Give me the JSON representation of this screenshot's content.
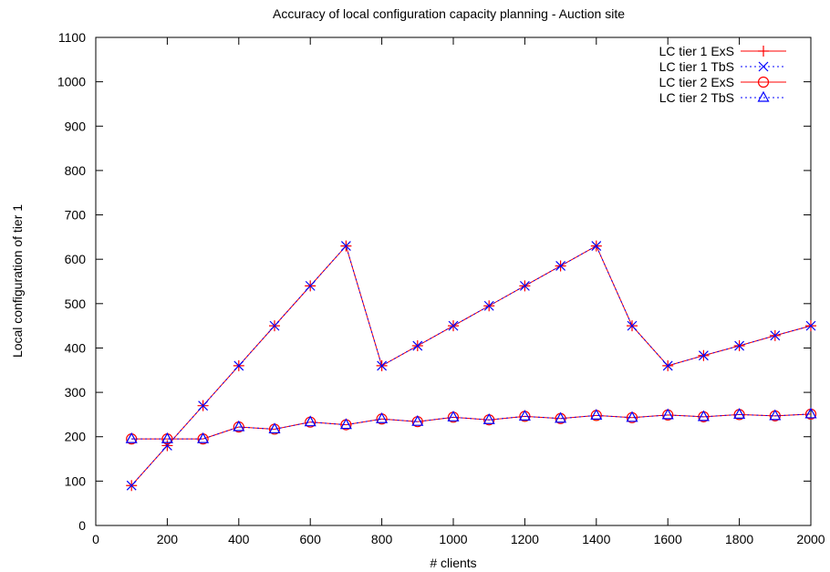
{
  "chart_data": {
    "type": "line",
    "title": "Accuracy of local configuration capacity planning - Auction site",
    "xlabel": "# clients",
    "ylabel": "Local configuration of tier 1",
    "xlim": [
      0,
      2000
    ],
    "ylim": [
      0,
      1100
    ],
    "x_ticks": [
      0,
      200,
      400,
      600,
      800,
      1000,
      1200,
      1400,
      1600,
      1800,
      2000
    ],
    "y_ticks": [
      0,
      100,
      200,
      300,
      400,
      500,
      600,
      700,
      800,
      900,
      1000,
      1100
    ],
    "grid": false,
    "legend_position": "top-right",
    "x": [
      100,
      200,
      300,
      400,
      500,
      600,
      700,
      800,
      900,
      1000,
      1100,
      1200,
      1300,
      1400,
      1500,
      1600,
      1700,
      1800,
      1900,
      2000
    ],
    "series": [
      {
        "name": "LC tier 1 ExS",
        "color": "#ff0000",
        "dash": "solid",
        "marker": "plus",
        "values": [
          90,
          180,
          270,
          360,
          450,
          540,
          630,
          360,
          405,
          450,
          495,
          540,
          585,
          630,
          450,
          360,
          383,
          405,
          428,
          450
        ]
      },
      {
        "name": "LC tier 1 TbS",
        "color": "#0000ff",
        "dash": "dotted",
        "marker": "cross",
        "values": [
          90,
          180,
          270,
          360,
          450,
          540,
          630,
          360,
          405,
          450,
          495,
          540,
          585,
          630,
          450,
          360,
          383,
          405,
          428,
          450
        ]
      },
      {
        "name": "LC tier 2 ExS",
        "color": "#ff0000",
        "dash": "solid",
        "marker": "circle",
        "values": [
          195,
          195,
          195,
          222,
          217,
          233,
          227,
          240,
          234,
          244,
          238,
          246,
          241,
          248,
          243,
          249,
          245,
          250,
          247,
          251
        ]
      },
      {
        "name": "LC tier 2 TbS",
        "color": "#0000ff",
        "dash": "dotted",
        "marker": "triangle",
        "values": [
          195,
          195,
          195,
          222,
          217,
          233,
          227,
          240,
          234,
          244,
          238,
          246,
          241,
          248,
          243,
          249,
          245,
          250,
          247,
          251
        ]
      }
    ]
  }
}
